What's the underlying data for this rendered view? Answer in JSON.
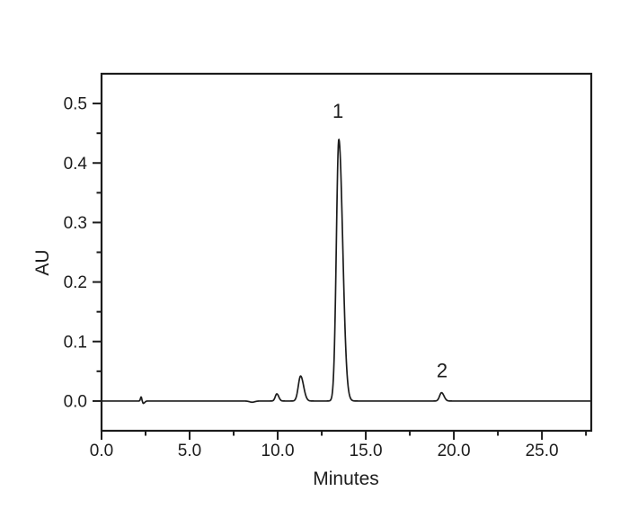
{
  "figure": {
    "background": "#ffffff",
    "line_color": "#1c1c1c"
  },
  "chart_data": {
    "type": "line",
    "title": "",
    "xlabel": "Minutes",
    "ylabel": "AU",
    "xlim": [
      0,
      27.8
    ],
    "ylim": [
      -0.05,
      0.55
    ],
    "grid": false,
    "legend": "none",
    "x_major_ticks": [
      0,
      5,
      10,
      15,
      20,
      25
    ],
    "x_major_tick_labels": [
      "0.0",
      "5.0",
      "10.0",
      "15.0",
      "20.0",
      "25.0"
    ],
    "x_minor_ticks": [
      2.5,
      7.5,
      12.5,
      17.5,
      22.5,
      27.5
    ],
    "y_major_ticks": [
      0.0,
      0.1,
      0.2,
      0.3,
      0.4,
      0.5
    ],
    "y_major_tick_labels": [
      "0.0",
      "0.1",
      "0.2",
      "0.3",
      "0.4",
      "0.5"
    ],
    "y_minor_ticks": [
      0.05,
      0.15,
      0.25,
      0.35,
      0.45
    ],
    "series": [
      {
        "name": "chromatogram-trace",
        "baseline_au": 0.0,
        "peaks": [
          {
            "id": "injection-artifact-up",
            "rt_min": 2.25,
            "height_au": 0.007,
            "sigma_left": 0.04,
            "sigma_right": 0.03
          },
          {
            "id": "injection-artifact-dip",
            "rt_min": 2.37,
            "height_au": -0.004,
            "sigma_left": 0.03,
            "sigma_right": 0.08
          },
          {
            "id": "baseline-dip",
            "rt_min": 8.55,
            "height_au": -0.002,
            "sigma_left": 0.15,
            "sigma_right": 0.15
          },
          {
            "id": "minor-peak-10min",
            "rt_min": 9.95,
            "height_au": 0.012,
            "sigma_left": 0.09,
            "sigma_right": 0.11
          },
          {
            "id": "minor-peak-11min",
            "rt_min": 11.3,
            "height_au": 0.042,
            "sigma_left": 0.13,
            "sigma_right": 0.17
          },
          {
            "id": "peak-1",
            "label": "1",
            "rt_min": 13.47,
            "height_au": 0.44,
            "sigma_left": 0.14,
            "sigma_right": 0.22
          },
          {
            "id": "peak-2",
            "label": "2",
            "rt_min": 19.3,
            "height_au": 0.014,
            "sigma_left": 0.11,
            "sigma_right": 0.14
          }
        ]
      }
    ],
    "annotations": [
      {
        "text": "1",
        "x": 13.42,
        "y": 0.487
      },
      {
        "text": "2",
        "x": 19.33,
        "y": 0.051
      }
    ]
  }
}
